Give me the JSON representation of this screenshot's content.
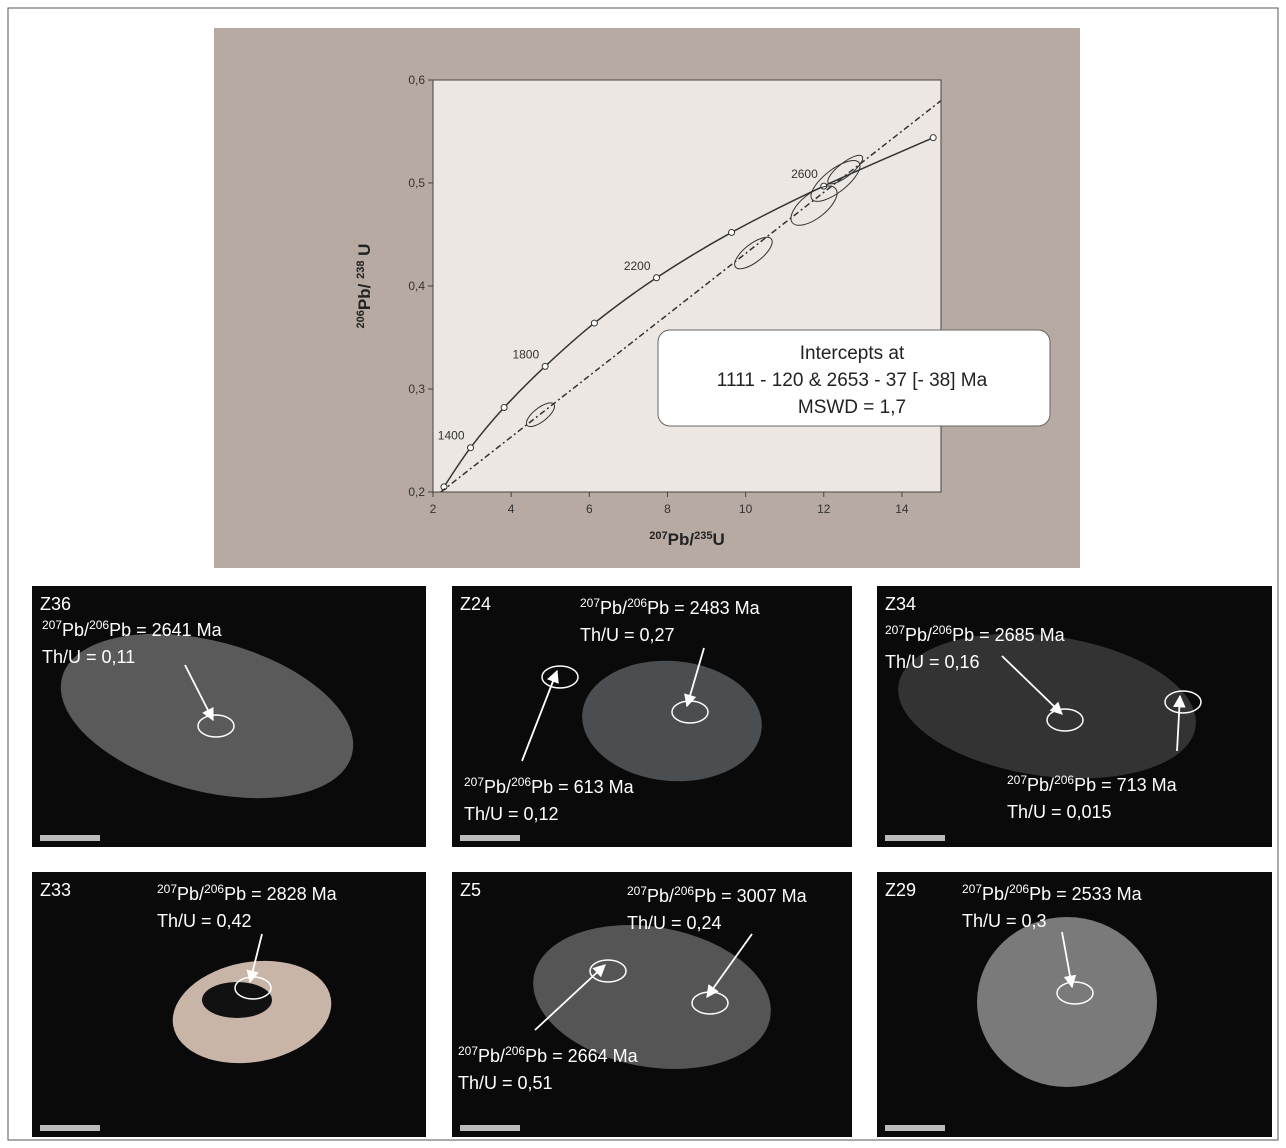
{
  "chart_data": {
    "type": "line",
    "x_label": {
      "sup": "207",
      "text_a": "Pb/",
      "sup_b": "235",
      "text_b": "U"
    },
    "y_label": {
      "sup": "206",
      "text_a": "Pb/ ",
      "sup_b": "238",
      "text_b": " U"
    },
    "xlim": [
      2,
      15
    ],
    "ylim": [
      0.2,
      0.6
    ],
    "xticks": [
      2,
      4,
      6,
      8,
      10,
      12,
      14
    ],
    "yticks": [
      {
        "value": 0.2,
        "label": "0,2"
      },
      {
        "value": 0.3,
        "label": "0,3"
      },
      {
        "value": 0.4,
        "label": "0,4"
      },
      {
        "value": 0.5,
        "label": "0,5"
      },
      {
        "value": 0.6,
        "label": "0,6"
      }
    ],
    "series": [
      {
        "color": "#333333",
        "markers": true,
        "x": [
          2.28,
          2.96,
          3.82,
          4.87,
          6.13,
          7.72,
          9.64,
          12.0,
          14.8
        ],
        "values": [
          0.205,
          0.243,
          0.282,
          0.322,
          0.364,
          0.408,
          0.452,
          0.497,
          0.544
        ],
        "point_labels": [
          null,
          1400,
          null,
          1800,
          null,
          2200,
          null,
          2600,
          null
        ]
      },
      {
        "color": "#333333",
        "dashed": true,
        "x": [
          2.2,
          15
        ],
        "values": [
          0.2,
          0.58
        ]
      }
    ],
    "ellipses": [
      {
        "x": 4.75,
        "y": 0.275,
        "x_err": 0.3,
        "y_err": 0.012
      },
      {
        "x": 10.2,
        "y": 0.432,
        "x_err": 0.4,
        "y_err": 0.016
      },
      {
        "x": 11.75,
        "y": 0.478,
        "x_err": 0.4,
        "y_err": 0.022
      },
      {
        "x": 12.3,
        "y": 0.502,
        "x_err": 0.55,
        "y_err": 0.02
      },
      {
        "x": 12.55,
        "y": 0.513,
        "x_err": 0.45,
        "y_err": 0.012
      }
    ],
    "annotation": [
      "Intercepts at",
      "1111 -  120 & 2653 -  37   [- 38]  Ma",
      "MSWD = 1,7"
    ]
  },
  "panels": [
    {
      "id": "Z36",
      "notes": [
        {
          "sup_a": "207",
          "mid": "Pb/",
          "sup_b": "206",
          "tail": "Pb =  2641 Ma",
          "thu": "Th/U = 0,11"
        }
      ]
    },
    {
      "id": "Z24",
      "notes": [
        {
          "sup_a": "207",
          "mid": "Pb/",
          "sup_b": "206",
          "tail": "Pb = 2483 Ma",
          "thu": "Th/U = 0,27"
        },
        {
          "sup_a": "207",
          "mid": "Pb/",
          "sup_b": "206",
          "tail": "Pb = 613 Ma",
          "thu": "Th/U = 0,12"
        }
      ]
    },
    {
      "id": "Z34",
      "notes": [
        {
          "sup_a": "207",
          "mid": "Pb/",
          "sup_b": "206",
          "tail": "Pb = 2685 Ma",
          "thu": "Th/U = 0,16"
        },
        {
          "sup_a": "207",
          "mid": "Pb/",
          "sup_b": "206",
          "tail": "Pb = 713 Ma",
          "thu": "Th/U = 0,015"
        }
      ]
    },
    {
      "id": "Z33",
      "notes": [
        {
          "sup_a": "207",
          "mid": "Pb/",
          "sup_b": "206",
          "tail": "Pb = 2828 Ma",
          "thu": "Th/U = 0,42"
        }
      ]
    },
    {
      "id": "Z5",
      "notes": [
        {
          "sup_a": "207",
          "mid": "Pb/",
          "sup_b": "206",
          "tail": "Pb = 3007 Ma",
          "thu": "Th/U = 0,24"
        },
        {
          "sup_a": "207",
          "mid": "Pb/",
          "sup_b": "206",
          "tail": "Pb = 2664 Ma",
          "thu": "Th/U = 0,51"
        }
      ]
    },
    {
      "id": "Z29",
      "notes": [
        {
          "sup_a": "207",
          "mid": "Pb/",
          "sup_b": "206",
          "tail": "Pb = 2533 Ma",
          "thu": "Th/U = 0,3"
        }
      ]
    }
  ]
}
